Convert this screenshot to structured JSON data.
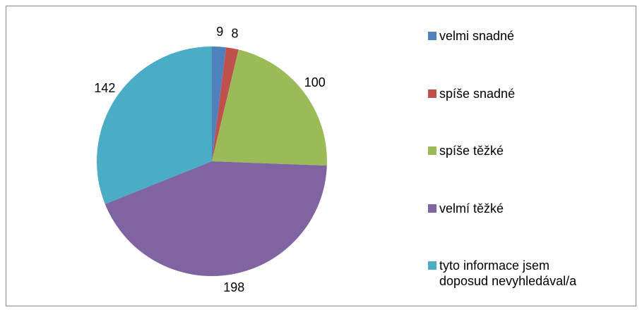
{
  "chart_data": {
    "type": "pie",
    "categories": [
      "velmi snadné",
      "spíše snadné",
      "spíše těžké",
      "velmí těžké",
      "tyto informace jsem doposud nevyhledával/a"
    ],
    "values": [
      9,
      8,
      100,
      198,
      142
    ],
    "colors": [
      "#4f81bd",
      "#c0504d",
      "#9bbb59",
      "#8064a2",
      "#4bacc6"
    ],
    "legend": "right"
  }
}
